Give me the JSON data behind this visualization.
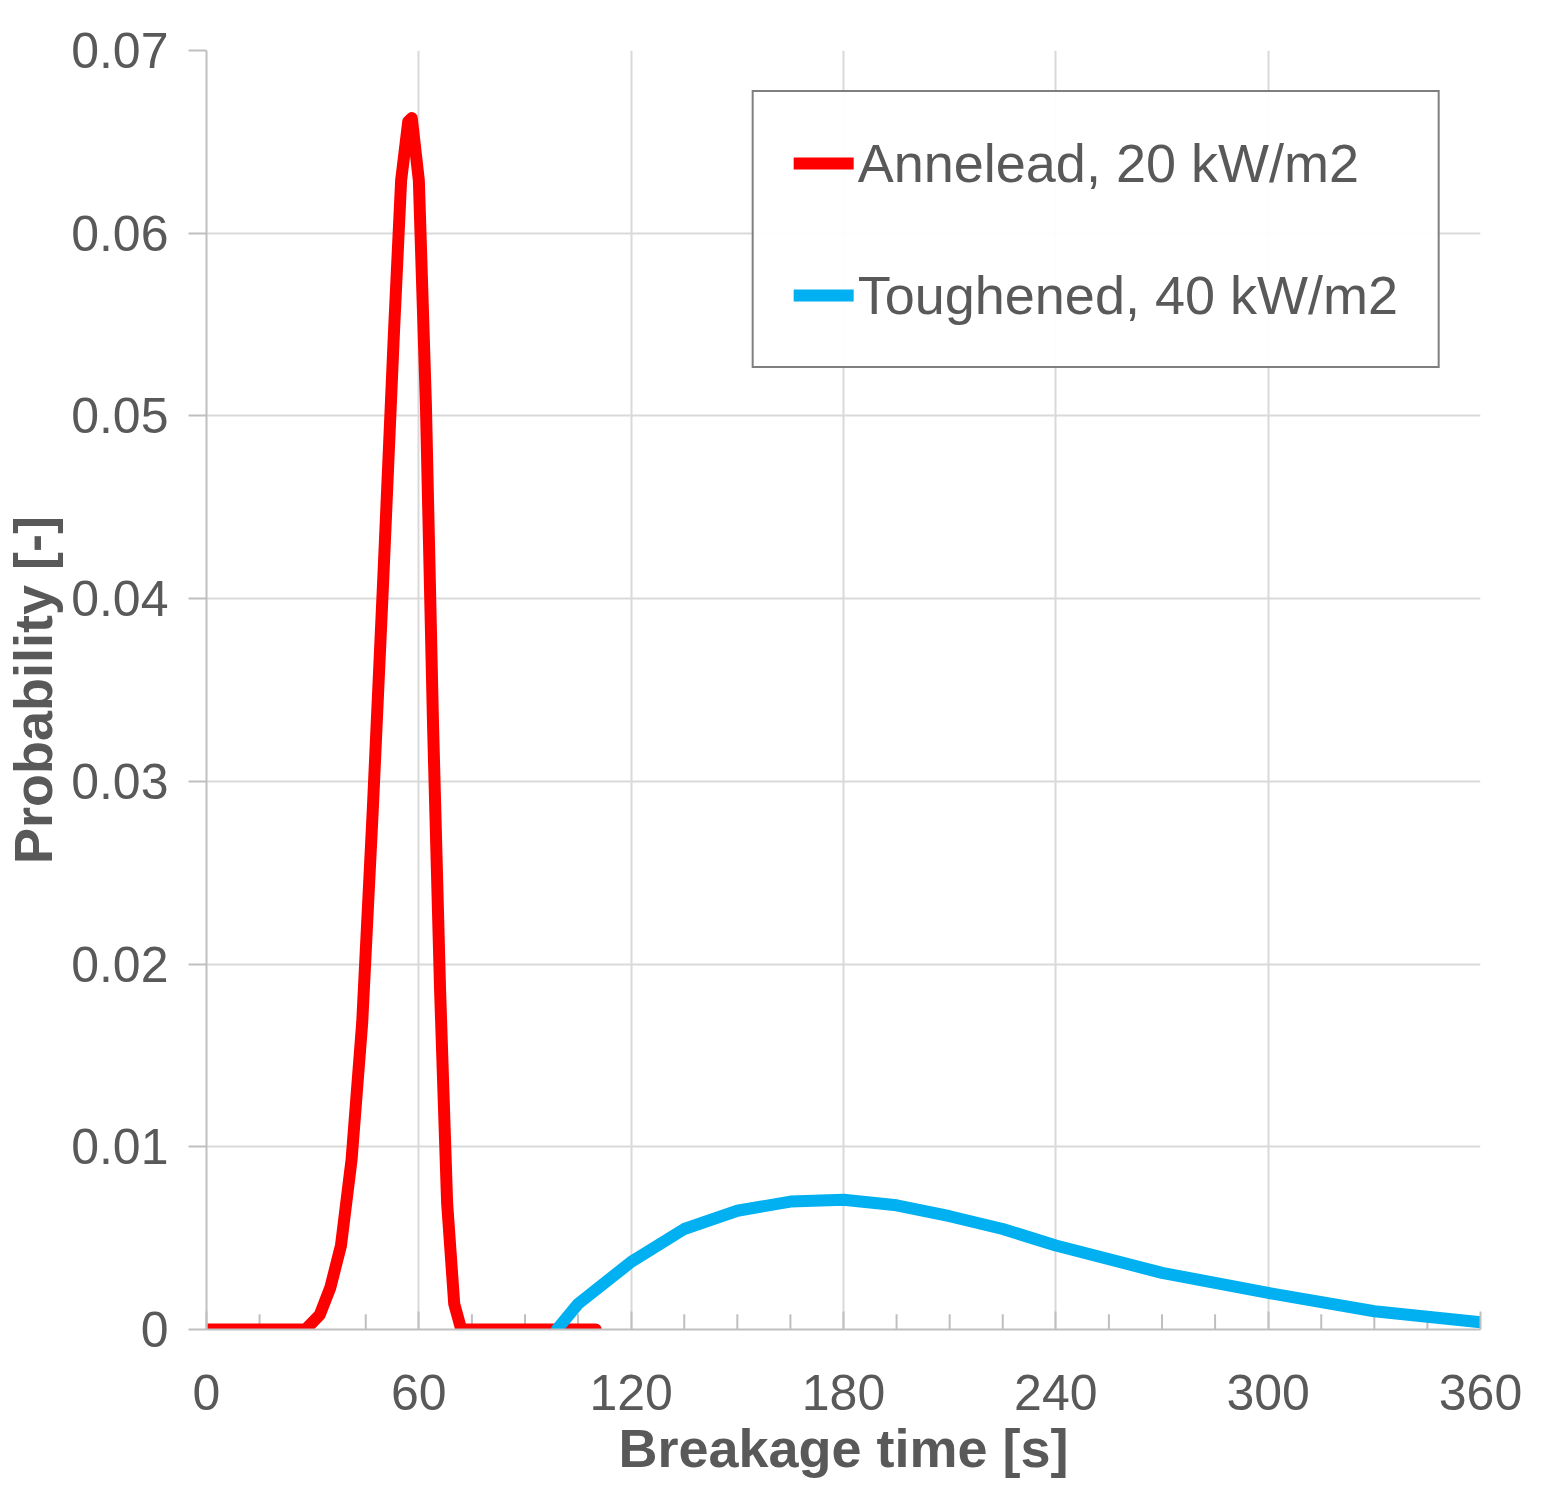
{
  "chart_data": {
    "type": "line",
    "xlabel": "Breakage time [s]",
    "ylabel": "Probability [-]",
    "xlim": [
      0,
      360
    ],
    "ylim": [
      0,
      0.07
    ],
    "xticks": [
      0,
      {
        "value": 15,
        "label": null
      },
      {
        "value": 30,
        "label": null
      },
      {
        "value": 45,
        "label": null
      },
      60,
      {
        "value": 75,
        "label": null
      },
      {
        "value": 90,
        "label": null
      },
      {
        "value": 105,
        "label": null
      },
      120,
      {
        "value": 135,
        "label": null
      },
      {
        "value": 150,
        "label": null
      },
      {
        "value": 165,
        "label": null
      },
      180,
      {
        "value": 195,
        "label": null
      },
      {
        "value": 210,
        "label": null
      },
      {
        "value": 225,
        "label": null
      },
      240,
      {
        "value": 255,
        "label": null
      },
      {
        "value": 270,
        "label": null
      },
      {
        "value": 285,
        "label": null
      },
      300,
      {
        "value": 315,
        "label": null
      },
      {
        "value": 330,
        "label": null
      },
      {
        "value": 345,
        "label": null
      },
      360
    ],
    "yticks": [
      0,
      0.01,
      0.02,
      0.03,
      0.04,
      0.05,
      0.06,
      0.07
    ],
    "grid": true,
    "legend": "top right",
    "marker": "none",
    "line_style": "solid",
    "series": [
      {
        "name": "Annelead, 20 kW/m2",
        "color": "#ff0000",
        "x": [
          0,
          28,
          32,
          35,
          38,
          41,
          44,
          47,
          50,
          53,
          55,
          57,
          58,
          60,
          62,
          64,
          66,
          68,
          70,
          72,
          110
        ],
        "values": [
          0,
          0,
          0.0008,
          0.0023,
          0.0046,
          0.0093,
          0.0168,
          0.0285,
          0.0413,
          0.0547,
          0.0629,
          0.0661,
          0.0663,
          0.0629,
          0.0506,
          0.0332,
          0.0186,
          0.0069,
          0.0014,
          0,
          0
        ]
      },
      {
        "name": "Toughened, 40 kW/m2",
        "color": "#00b0f0",
        "x": [
          99,
          105,
          120,
          135,
          150,
          165,
          180,
          195,
          210,
          225,
          240,
          270,
          300,
          330,
          360
        ],
        "values": [
          0,
          0.0014,
          0.0037,
          0.0055,
          0.0065,
          0.007,
          0.0071,
          0.0068,
          0.0062,
          0.0055,
          0.0046,
          0.0031,
          0.002,
          0.001,
          0.0004
        ]
      }
    ]
  }
}
